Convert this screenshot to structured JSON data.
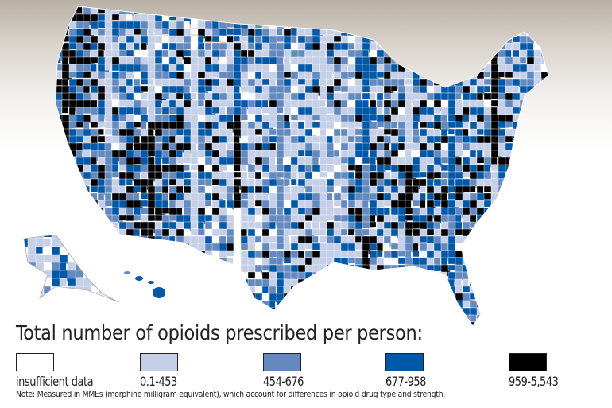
{
  "legend": {
    "title": "Total number of opioids prescribed per person:",
    "items": [
      {
        "label": "insufficient data",
        "color": "#ffffff"
      },
      {
        "label": "0.1-453",
        "color": "#c5cfe8"
      },
      {
        "label": "454-676",
        "color": "#6389bf"
      },
      {
        "label": "677-958",
        "color": "#0058a6"
      },
      {
        "label": "959-5,543",
        "color": "#000000"
      }
    ],
    "note": "Note: Measured in MMEs (morphine milligram equivalent), which account for differences in opioid drug type and strength."
  }
}
